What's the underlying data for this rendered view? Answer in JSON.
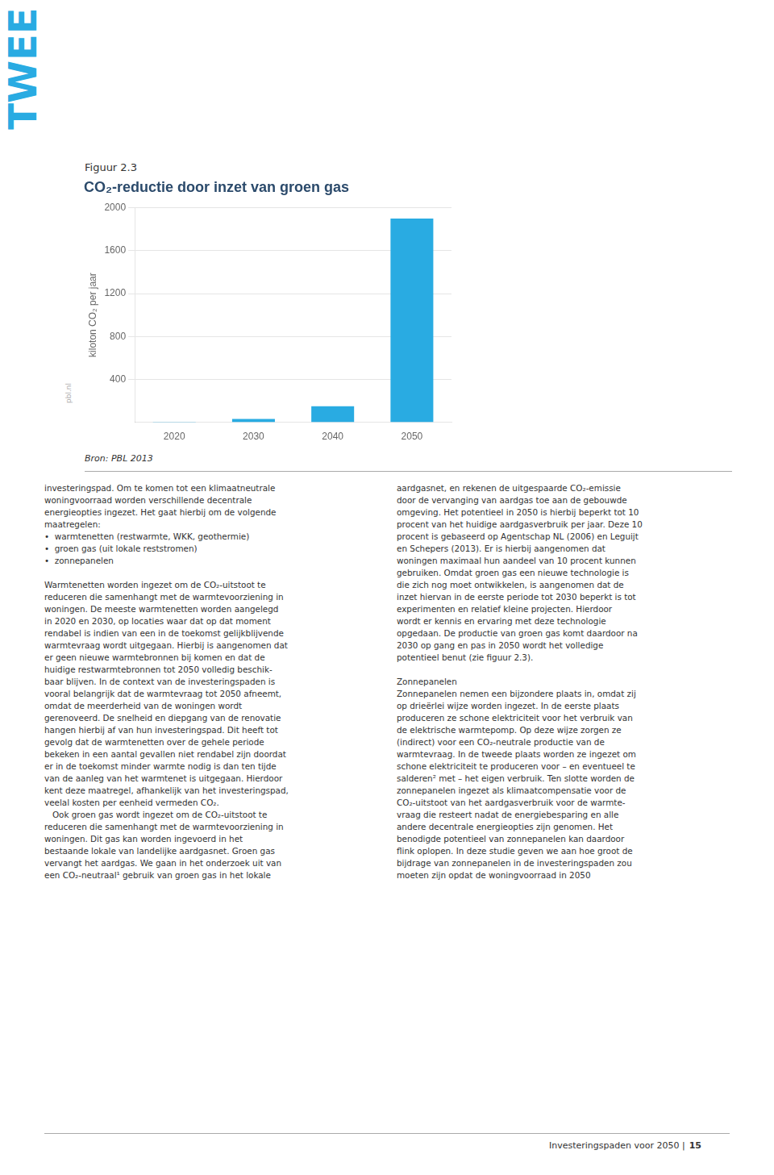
{
  "chart_data": {
    "type": "bar",
    "title": "CO₂-reductie door inzet van groen gas",
    "ylabel": "kiloton CO₂ per jaar",
    "categories": [
      "2020",
      "2030",
      "2040",
      "2050"
    ],
    "values": [
      5,
      30,
      150,
      1900
    ],
    "color": "#29ABE2",
    "ylim": [
      0,
      2000
    ],
    "yticks": [
      400,
      800,
      1200,
      1600,
      2000
    ],
    "grid": true,
    "annotations": [
      "TWEE",
      "Figuur 2.3",
      "pbl.nl",
      "Bron: PBL 2013",
      "investeringspad. Om te komen tot een klimaatneutrale\nwoningvoorraad worden verschillende decentrale\nenergieopties ingezet. Het gaat hierbij om de volgende\nmaatregelen:\n•  warmtenetten (restwarmte, WKK, geothermie)\n•  groen gas (uit lokale reststromen)\n•  zonnepanelen\n\nWarmtenetten worden ingezet om de CO₂-uitstoot te\nreduceren die samenhangt met de warmtevoorziening in\nwoningen. De meeste warmtenetten worden aangelegd\nin 2020 en 2030, op locaties waar dat op dat moment\nrendabel is indien van een in de toekomst gelijkblijvende\nwarmtevraag wordt uitgegaan. Hierbij is aangenomen dat\ner geen nieuwe warmtebronnen bij komen en dat de\nhuidige restwarmtebronnen tot 2050 volledig beschik-\nbaar blijven. In de context van de investeringspaden is\nvooral belangrijk dat de warmtevraag tot 2050 afneemt,\nomdat de meerderheid van de woningen wordt\ngerenoveerd. De snelheid en diepgang van de renovatie\nhangen hierbij af van hun investeringspad. Dit heeft tot\ngevolg dat de warmtenetten over de gehele periode\nbekeken in een aantal gevallen niet rendabel zijn doordat\ner in de toekomst minder warmte nodig is dan ten tijde\nvan de aanleg van het warmtenet is uitgegaan. Hierdoor\nkent deze maatregel, afhankelijk van het investeringspad,\nveelal kosten per eenheid vermeden CO₂.\n   Ook groen gas wordt ingezet om de CO₂-uitstoot te\nreduceren die samenhangt met de warmtevoorziening in\nwoningen. Dit gas kan worden ingevoerd in het\nbestaande lokale van landelijke aardgasnet. Groen gas\nvervangt het aardgas. We gaan in het onderzoek uit van\neen CO₂-neutraal¹ gebruik van groen gas in het lokale",
      "aardgasnet, en rekenen de uitgespaarde CO₂-emissie\ndoor de vervanging van aardgas toe aan de gebouwde\nomgeving. Het potentieel in 2050 is hierbij beperkt tot 10\nprocent van het huidige aardgasverbruik per jaar. Deze 10\nprocent is gebaseerd op Agentschap NL (2006) en Leguijt\nen Schepers (2013). Er is hierbij aangenomen dat\nwoningen maximaal hun aandeel van 10 procent kunnen\ngebruiken. Omdat groen gas een nieuwe technologie is\ndie zich nog moet ontwikkelen, is aangenomen dat de\ninzet hiervan in de eerste periode tot 2030 beperkt is tot\nexperimenten en relatief kleine projecten. Hierdoor\nwordt er kennis en ervaring met deze technologie\nopgedaan. De productie van groen gas komt daardoor na\n2030 op gang en pas in 2050 wordt het volledige\npotentieel benut (zie figuur 2.3).\n\nZonnepanelen\nZonnepanelen nemen een bijzondere plaats in, omdat zij\nop drieërlei wijze worden ingezet. In de eerste plaats\nproduceren ze schone elektriciteit voor het verbruik van\nde elektrische warmtepomp. Op deze wijze zorgen ze\n(indirect) voor een CO₂-neutrale productie van de\nwarmtevraag. In de tweede plaats worden ze ingezet om\nschone elektriciteit te produceren voor – en eventueel te\nsalderen² met – het eigen verbruik. Ten slotte worden de\nzonnepanelen ingezet als klimaatcompensatie voor de\nCO₂-uitstoot van het aardgasverbruik voor de warmte-\nvraag die resteert nadat de energiebesparing en alle\nandere decentrale energieopties zijn genomen. Het\nbenodigde potentieel van zonnepanelen kan daardoor\nflink oplopen. In deze studie geven we aan hoe groot de\nbijdrage van zonnepanelen in de investeringspaden zou\nmoeten zijn opdat de woningvoorraad in 2050",
      "Investeringspaden voor 2050 |",
      "15"
    ]
  }
}
